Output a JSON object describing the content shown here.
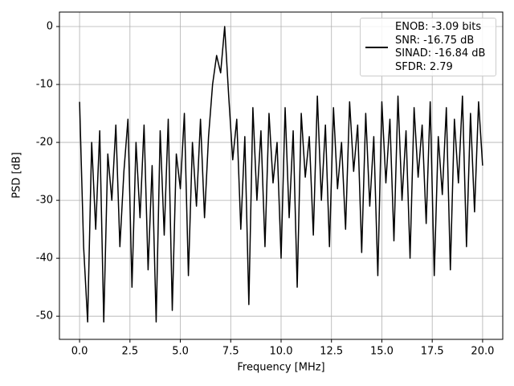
{
  "chart_data": {
    "type": "line",
    "xlabel": "Frequency [MHz]",
    "ylabel": "PSD [dB]",
    "x": [
      0,
      0.2,
      0.4,
      0.6,
      0.8,
      1,
      1.2,
      1.4,
      1.6,
      1.8,
      2,
      2.2,
      2.4,
      2.6,
      2.8,
      3,
      3.2,
      3.4,
      3.6,
      3.8,
      4,
      4.2,
      4.4,
      4.6,
      4.8,
      5,
      5.2,
      5.4,
      5.6,
      5.8,
      6,
      6.2,
      6.4,
      6.6,
      6.8,
      7,
      7.2,
      7.4,
      7.6,
      7.8,
      8,
      8.2,
      8.4,
      8.6,
      8.8,
      9,
      9.2,
      9.4,
      9.6,
      9.8,
      10,
      10.2,
      10.4,
      10.6,
      10.8,
      11,
      11.2,
      11.4,
      11.6,
      11.8,
      12,
      12.2,
      12.4,
      12.6,
      12.8,
      13,
      13.2,
      13.4,
      13.6,
      13.8,
      14,
      14.2,
      14.4,
      14.6,
      14.8,
      15,
      15.2,
      15.4,
      15.6,
      15.8,
      16,
      16.2,
      16.4,
      16.6,
      16.8,
      17,
      17.2,
      17.4,
      17.6,
      17.8,
      18,
      18.2,
      18.4,
      18.6,
      18.8,
      19,
      19.2,
      19.4,
      19.6,
      19.8,
      20
    ],
    "series": [
      {
        "name": "ENOB: -3.09 bits\nSNR: -16.75 dB\nSINAD: -16.84 dB\nSFDR: 2.79",
        "color": "#000000",
        "values": [
          -13,
          -38,
          -51,
          -20,
          -35,
          -18,
          -51,
          -22,
          -30,
          -17,
          -38,
          -25,
          -16,
          -45,
          -20,
          -33,
          -17,
          -42,
          -24,
          -51,
          -18,
          -36,
          -16,
          -49,
          -22,
          -28,
          -15,
          -43,
          -20,
          -31,
          -16,
          -33,
          -19,
          -10,
          -5,
          -8,
          0,
          -12,
          -23,
          -16,
          -35,
          -19,
          -48,
          -14,
          -30,
          -18,
          -38,
          -15,
          -27,
          -20,
          -40,
          -14,
          -33,
          -18,
          -45,
          -15,
          -26,
          -19,
          -36,
          -12,
          -30,
          -17,
          -38,
          -14,
          -28,
          -20,
          -35,
          -13,
          -25,
          -17,
          -39,
          -15,
          -31,
          -19,
          -43,
          -13,
          -27,
          -16,
          -37,
          -12,
          -30,
          -18,
          -40,
          -14,
          -26,
          -17,
          -34,
          -13,
          -43,
          -19,
          -29,
          -14,
          -42,
          -16,
          -27,
          -12,
          -38,
          -15,
          -32,
          -13,
          -24
        ]
      }
    ],
    "xlim": [
      -1,
      21
    ],
    "ylim": [
      -54,
      2.5
    ],
    "xticks": [
      {
        "value": 0,
        "label": "0.0"
      },
      {
        "value": 2.5,
        "label": "2.5"
      },
      {
        "value": 5,
        "label": "5.0"
      },
      {
        "value": 7.5,
        "label": "7.5"
      },
      {
        "value": 10,
        "label": "10.0"
      },
      {
        "value": 12.5,
        "label": "12.5"
      },
      {
        "value": 15,
        "label": "15.0"
      },
      {
        "value": 17.5,
        "label": "17.5"
      },
      {
        "value": 20,
        "label": "20.0"
      }
    ],
    "yticks": [
      -50,
      -40,
      -30,
      -20,
      -10,
      0
    ],
    "grid": true,
    "legend": "upper right"
  }
}
